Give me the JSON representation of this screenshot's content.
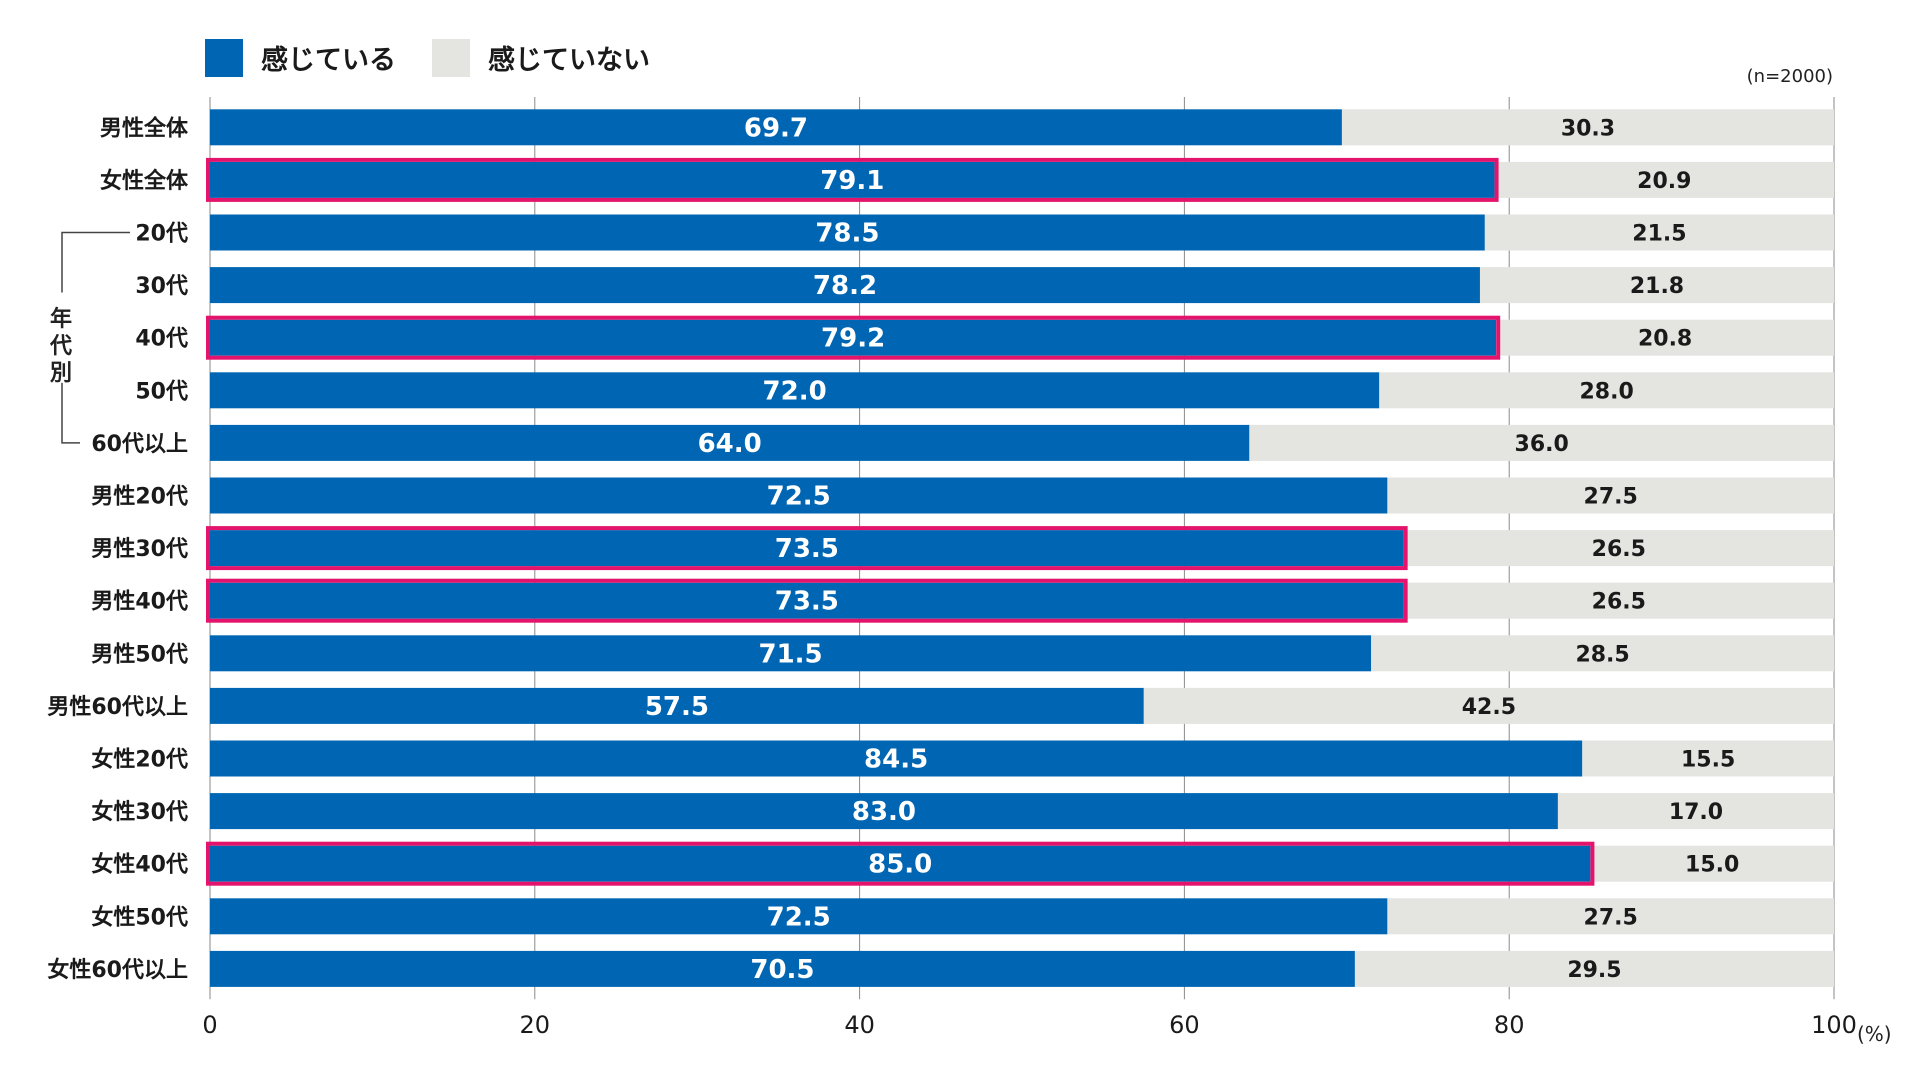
{
  "legend": {
    "feel": {
      "label": "感じている",
      "color": "#0066B3"
    },
    "not_feel": {
      "label": "感じていない",
      "color": "#E4E4E0"
    }
  },
  "note": "(n=2000)",
  "percent_unit": "(%)",
  "group_label": [
    "年",
    "代",
    "別"
  ],
  "highlight_color": "#E4136B",
  "chart_data": {
    "type": "bar",
    "orientation": "horizontal",
    "stacked": true,
    "categories": [
      "男性全体",
      "女性全体",
      "20代",
      "30代",
      "40代",
      "50代",
      "60代以上",
      "男性20代",
      "男性30代",
      "男性40代",
      "男性50代",
      "男性60代以上",
      "女性20代",
      "女性30代",
      "女性40代",
      "女性50代",
      "女性60代以上"
    ],
    "series": [
      {
        "name": "感じている",
        "values": [
          69.7,
          79.1,
          78.5,
          78.2,
          79.2,
          72.0,
          64.0,
          72.5,
          73.5,
          73.5,
          71.5,
          57.5,
          84.5,
          83.0,
          85.0,
          72.5,
          70.5
        ]
      },
      {
        "name": "感じていない",
        "values": [
          30.3,
          20.9,
          21.5,
          21.8,
          20.8,
          28.0,
          36.0,
          27.5,
          26.5,
          26.5,
          28.5,
          42.5,
          15.5,
          17.0,
          15.0,
          27.5,
          29.5
        ]
      }
    ],
    "value_labels": {
      "feel": [
        "69.7",
        "79.1",
        "78.5",
        "78.2",
        "79.2",
        "72.0",
        "64.0",
        "72.5",
        "73.5",
        "73.5",
        "71.5",
        "57.5",
        "84.5",
        "83.0",
        "85.0",
        "72.5",
        "70.5"
      ],
      "not_feel": [
        "30.3",
        "20.9",
        "21.5",
        "21.8",
        "20.8",
        "28.0",
        "36.0",
        "27.5",
        "26.5",
        "26.5",
        "28.5",
        "42.5",
        "15.5",
        "17.0",
        "15.0",
        "27.5",
        "29.5"
      ]
    },
    "highlighted": [
      "女性全体",
      "40代",
      "男性30代",
      "男性40代",
      "女性40代"
    ],
    "indented_categories": [
      "20代",
      "30代",
      "40代",
      "50代",
      "60代以上"
    ],
    "xlim": [
      0,
      100
    ],
    "xticks": [
      0,
      20,
      40,
      60,
      80,
      100
    ],
    "xlabel": "",
    "ylabel": "",
    "grid": true,
    "legend_position": "top-left"
  }
}
